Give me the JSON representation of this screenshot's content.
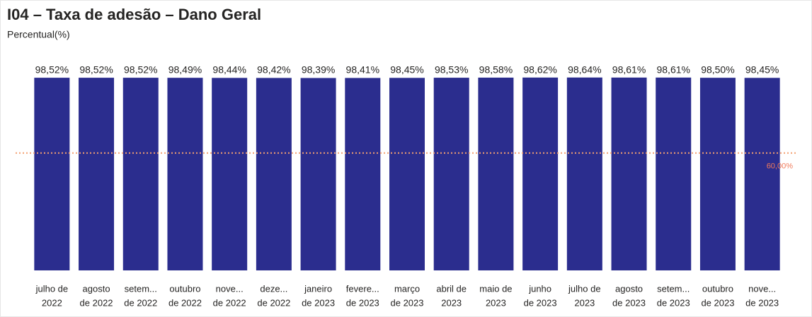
{
  "chart_data": {
    "type": "bar",
    "title": "I04 – Taxa de adesão – Dano Geral",
    "subtitle": "Percentual(%)",
    "categories": [
      [
        "julho de",
        "2022"
      ],
      [
        "agosto",
        "de 2022"
      ],
      [
        "setem...",
        "de 2022"
      ],
      [
        "outubro",
        "de 2022"
      ],
      [
        "nove...",
        "de 2022"
      ],
      [
        "deze...",
        "de 2022"
      ],
      [
        "janeiro",
        "de 2023"
      ],
      [
        "fevere...",
        "de 2023"
      ],
      [
        "março",
        "de 2023"
      ],
      [
        "abril de",
        "2023"
      ],
      [
        "maio de",
        "2023"
      ],
      [
        "junho",
        "de 2023"
      ],
      [
        "julho de",
        "2023"
      ],
      [
        "agosto",
        "de 2023"
      ],
      [
        "setem...",
        "de 2023"
      ],
      [
        "outubro",
        "de 2023"
      ],
      [
        "nove...",
        "de 2023"
      ]
    ],
    "values": [
      98.52,
      98.52,
      98.52,
      98.49,
      98.44,
      98.42,
      98.39,
      98.41,
      98.45,
      98.53,
      98.58,
      98.62,
      98.64,
      98.61,
      98.61,
      98.5,
      98.45
    ],
    "value_labels": [
      "98,52%",
      "98,52%",
      "98,52%",
      "98,49%",
      "98,44%",
      "98,42%",
      "98,39%",
      "98,41%",
      "98,45%",
      "98,53%",
      "98,58%",
      "98,62%",
      "98,64%",
      "98,61%",
      "98,61%",
      "98,50%",
      "98,45%"
    ],
    "color": "#2b2d8e",
    "ylim": [
      0,
      100
    ],
    "reference_line": {
      "value": 60,
      "label": "60,00%",
      "color": "#f4a070"
    }
  }
}
